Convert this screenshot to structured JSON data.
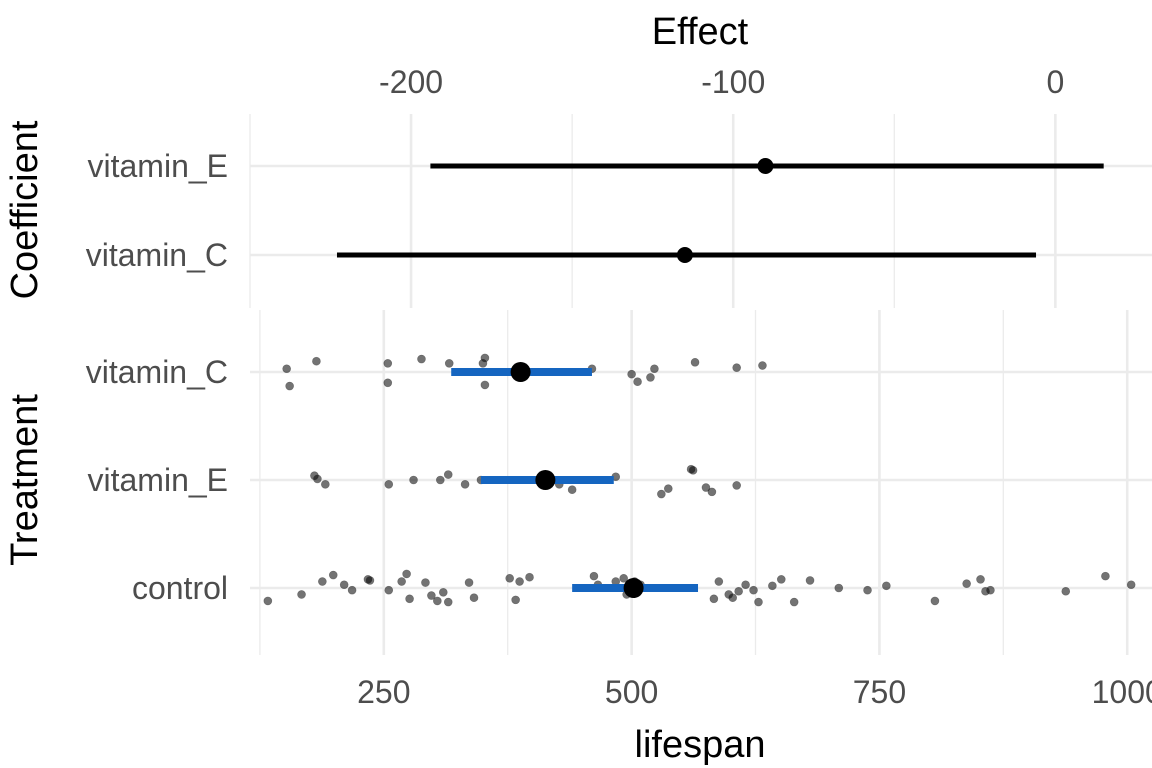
{
  "chart_data": [
    {
      "type": "interval",
      "panel": "top",
      "x_axis_title": "Effect",
      "x_axis_position": "top",
      "y_axis_title": "Coefficient",
      "xlim": [
        -250,
        30
      ],
      "x_ticks": [
        -200,
        -100,
        0
      ],
      "x_tick_labels": [
        "-200",
        "-100",
        "0"
      ],
      "categories": [
        "vitamin_E",
        "vitamin_C"
      ],
      "estimates": [
        {
          "label": "vitamin_E",
          "estimate": -90,
          "lower": -194,
          "upper": 15
        },
        {
          "label": "vitamin_C",
          "estimate": -115,
          "lower": -223,
          "upper": -6
        }
      ],
      "grid": true
    },
    {
      "type": "scatter",
      "panel": "bottom",
      "x_axis_title": "lifespan",
      "y_axis_title": "Treatment",
      "xlim": [
        115,
        1025
      ],
      "x_ticks": [
        250,
        500,
        750,
        1000
      ],
      "x_tick_labels": [
        "250",
        "500",
        "750",
        "1000"
      ],
      "categories": [
        "vitamin_C",
        "vitamin_E",
        "control"
      ],
      "grid": true,
      "summary": [
        {
          "group": "vitamin_C",
          "mean": 388,
          "lower": 318,
          "upper": 460
        },
        {
          "group": "vitamin_E",
          "mean": 413,
          "lower": 348,
          "upper": 482
        },
        {
          "group": "control",
          "mean": 502,
          "lower": 440,
          "upper": 567
        }
      ],
      "groups": [
        {
          "group": "vitamin_C",
          "points": [
            {
              "x": 152,
              "j": 0.03
            },
            {
              "x": 155,
              "j": -0.13
            },
            {
              "x": 182,
              "j": 0.1
            },
            {
              "x": 254,
              "j": 0.08
            },
            {
              "x": 254,
              "j": -0.1
            },
            {
              "x": 288,
              "j": 0.12
            },
            {
              "x": 316,
              "j": 0.08
            },
            {
              "x": 350,
              "j": 0.08
            },
            {
              "x": 352,
              "j": 0.13
            },
            {
              "x": 352,
              "j": -0.12
            },
            {
              "x": 460,
              "j": 0.03
            },
            {
              "x": 500,
              "j": -0.02
            },
            {
              "x": 506,
              "j": -0.09
            },
            {
              "x": 519,
              "j": -0.05
            },
            {
              "x": 523,
              "j": 0.03
            },
            {
              "x": 564,
              "j": 0.09
            },
            {
              "x": 606,
              "j": 0.04
            },
            {
              "x": 632,
              "j": 0.06
            }
          ]
        },
        {
          "group": "vitamin_E",
          "points": [
            {
              "x": 180,
              "j": 0.04
            },
            {
              "x": 183,
              "j": 0.01
            },
            {
              "x": 191,
              "j": -0.04
            },
            {
              "x": 255,
              "j": -0.04
            },
            {
              "x": 280,
              "j": 0.0
            },
            {
              "x": 307,
              "j": 0.0
            },
            {
              "x": 315,
              "j": 0.05
            },
            {
              "x": 332,
              "j": -0.04
            },
            {
              "x": 348,
              "j": 0.0
            },
            {
              "x": 427,
              "j": -0.04
            },
            {
              "x": 440,
              "j": -0.09
            },
            {
              "x": 484,
              "j": 0.03
            },
            {
              "x": 530,
              "j": -0.13
            },
            {
              "x": 537,
              "j": -0.08
            },
            {
              "x": 560,
              "j": 0.1
            },
            {
              "x": 562,
              "j": 0.09
            },
            {
              "x": 575,
              "j": -0.07
            },
            {
              "x": 581,
              "j": -0.11
            },
            {
              "x": 606,
              "j": -0.05
            }
          ]
        },
        {
          "group": "control",
          "points": [
            {
              "x": 133,
              "j": -0.12
            },
            {
              "x": 167,
              "j": -0.06
            },
            {
              "x": 188,
              "j": 0.06
            },
            {
              "x": 199,
              "j": 0.12
            },
            {
              "x": 210,
              "j": 0.03
            },
            {
              "x": 218,
              "j": -0.02
            },
            {
              "x": 234,
              "j": 0.08
            },
            {
              "x": 236,
              "j": 0.07
            },
            {
              "x": 255,
              "j": -0.02
            },
            {
              "x": 268,
              "j": 0.06
            },
            {
              "x": 273,
              "j": 0.13
            },
            {
              "x": 276,
              "j": -0.1
            },
            {
              "x": 292,
              "j": 0.05
            },
            {
              "x": 298,
              "j": -0.07
            },
            {
              "x": 304,
              "j": -0.12
            },
            {
              "x": 310,
              "j": -0.04
            },
            {
              "x": 315,
              "j": -0.13
            },
            {
              "x": 336,
              "j": 0.05
            },
            {
              "x": 341,
              "j": -0.09
            },
            {
              "x": 377,
              "j": 0.09
            },
            {
              "x": 383,
              "j": -0.11
            },
            {
              "x": 387,
              "j": 0.06
            },
            {
              "x": 397,
              "j": 0.1
            },
            {
              "x": 462,
              "j": 0.11
            },
            {
              "x": 466,
              "j": 0.03
            },
            {
              "x": 484,
              "j": 0.06
            },
            {
              "x": 492,
              "j": 0.09
            },
            {
              "x": 495,
              "j": -0.06
            },
            {
              "x": 503,
              "j": 0.06
            },
            {
              "x": 509,
              "j": 0.03
            },
            {
              "x": 583,
              "j": -0.1
            },
            {
              "x": 588,
              "j": 0.06
            },
            {
              "x": 598,
              "j": -0.06
            },
            {
              "x": 602,
              "j": -0.09
            },
            {
              "x": 608,
              "j": -0.03
            },
            {
              "x": 615,
              "j": 0.03
            },
            {
              "x": 623,
              "j": -0.02
            },
            {
              "x": 628,
              "j": -0.13
            },
            {
              "x": 642,
              "j": 0.02
            },
            {
              "x": 651,
              "j": 0.08
            },
            {
              "x": 664,
              "j": -0.13
            },
            {
              "x": 680,
              "j": 0.07
            },
            {
              "x": 709,
              "j": 0.0
            },
            {
              "x": 738,
              "j": -0.02
            },
            {
              "x": 757,
              "j": 0.02
            },
            {
              "x": 806,
              "j": -0.12
            },
            {
              "x": 838,
              "j": 0.04
            },
            {
              "x": 852,
              "j": 0.08
            },
            {
              "x": 857,
              "j": -0.03
            },
            {
              "x": 862,
              "j": -0.02
            },
            {
              "x": 938,
              "j": -0.03
            },
            {
              "x": 978,
              "j": 0.11
            },
            {
              "x": 1004,
              "j": 0.03
            }
          ]
        }
      ]
    }
  ],
  "colors": {
    "interval_top": "#000000",
    "interval_bottom": "#1565c0",
    "point": "#000000",
    "grid": "#ebebeb",
    "tick_text": "#4d4d4d",
    "title_text": "#000000"
  }
}
